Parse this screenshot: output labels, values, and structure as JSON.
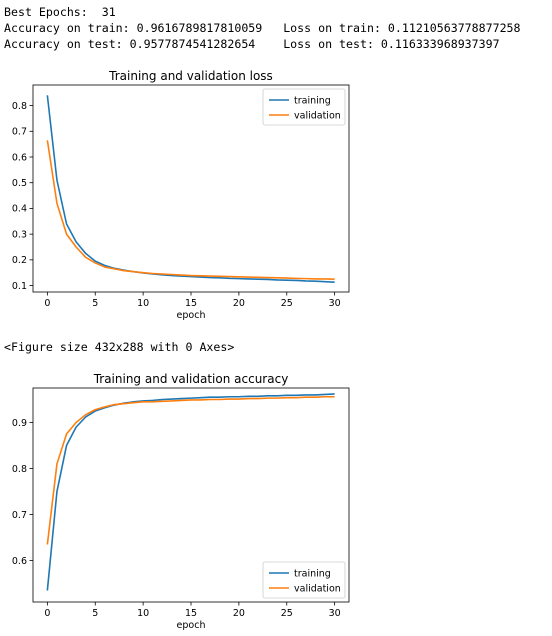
{
  "output": {
    "line1": "Best Epochs:  31",
    "line2": "Accuracy on train: 0.9616789817810059   Loss on train: 0.11210563778877258",
    "line3": "Accuracy on test: 0.9577874541282654    Loss on test: 0.116333968937397",
    "figure_note": "<Figure size 432x288 with 0 Axes>"
  },
  "colors": {
    "training": "#1f77b4",
    "validation": "#ff7f0e"
  },
  "chart_data": [
    {
      "type": "line",
      "title": "Training and validation loss",
      "xlabel": "epoch",
      "ylabel": "",
      "xlim": [
        -1.5,
        31.5
      ],
      "ylim": [
        0.075,
        0.88
      ],
      "xticks": [
        0,
        5,
        10,
        15,
        20,
        25,
        30
      ],
      "yticks": [
        0.1,
        0.2,
        0.3,
        0.4,
        0.5,
        0.6,
        0.7,
        0.8
      ],
      "ytick_labels": [
        "0.1",
        "0.2",
        "0.3",
        "0.4",
        "0.5",
        "0.6",
        "0.7",
        "0.8"
      ],
      "legend": "top-right",
      "x": [
        0,
        1,
        2,
        3,
        4,
        5,
        6,
        7,
        8,
        9,
        10,
        11,
        12,
        13,
        14,
        15,
        16,
        17,
        18,
        19,
        20,
        21,
        22,
        23,
        24,
        25,
        26,
        27,
        28,
        29,
        30
      ],
      "series": [
        {
          "name": "training",
          "values": [
            0.84,
            0.51,
            0.34,
            0.27,
            0.225,
            0.195,
            0.178,
            0.167,
            0.16,
            0.154,
            0.149,
            0.145,
            0.142,
            0.139,
            0.137,
            0.135,
            0.133,
            0.131,
            0.13,
            0.128,
            0.127,
            0.126,
            0.125,
            0.124,
            0.122,
            0.121,
            0.12,
            0.118,
            0.117,
            0.115,
            0.113
          ]
        },
        {
          "name": "validation",
          "values": [
            0.665,
            0.42,
            0.3,
            0.25,
            0.21,
            0.188,
            0.172,
            0.165,
            0.158,
            0.154,
            0.15,
            0.147,
            0.145,
            0.143,
            0.141,
            0.139,
            0.138,
            0.137,
            0.136,
            0.135,
            0.134,
            0.133,
            0.132,
            0.131,
            0.13,
            0.129,
            0.128,
            0.127,
            0.126,
            0.126,
            0.125
          ]
        }
      ]
    },
    {
      "type": "line",
      "title": "Training and validation accuracy",
      "xlabel": "epoch",
      "ylabel": "",
      "xlim": [
        -1.5,
        31.5
      ],
      "ylim": [
        0.51,
        0.975
      ],
      "xticks": [
        0,
        5,
        10,
        15,
        20,
        25,
        30
      ],
      "yticks": [
        0.6,
        0.7,
        0.8,
        0.9
      ],
      "ytick_labels": [
        "0.6",
        "0.7",
        "0.8",
        "0.9"
      ],
      "legend": "bottom-right",
      "x": [
        0,
        1,
        2,
        3,
        4,
        5,
        6,
        7,
        8,
        9,
        10,
        11,
        12,
        13,
        14,
        15,
        16,
        17,
        18,
        19,
        20,
        21,
        22,
        23,
        24,
        25,
        26,
        27,
        28,
        29,
        30
      ],
      "series": [
        {
          "name": "training",
          "values": [
            0.535,
            0.75,
            0.85,
            0.89,
            0.912,
            0.925,
            0.932,
            0.938,
            0.942,
            0.945,
            0.947,
            0.948,
            0.95,
            0.951,
            0.952,
            0.953,
            0.954,
            0.955,
            0.955,
            0.956,
            0.956,
            0.957,
            0.957,
            0.958,
            0.958,
            0.959,
            0.959,
            0.96,
            0.96,
            0.961,
            0.962
          ]
        },
        {
          "name": "validation",
          "values": [
            0.635,
            0.81,
            0.875,
            0.9,
            0.917,
            0.928,
            0.934,
            0.939,
            0.941,
            0.943,
            0.945,
            0.945,
            0.946,
            0.947,
            0.948,
            0.949,
            0.949,
            0.95,
            0.95,
            0.951,
            0.951,
            0.952,
            0.952,
            0.953,
            0.953,
            0.954,
            0.954,
            0.955,
            0.955,
            0.956,
            0.956
          ]
        }
      ]
    }
  ]
}
